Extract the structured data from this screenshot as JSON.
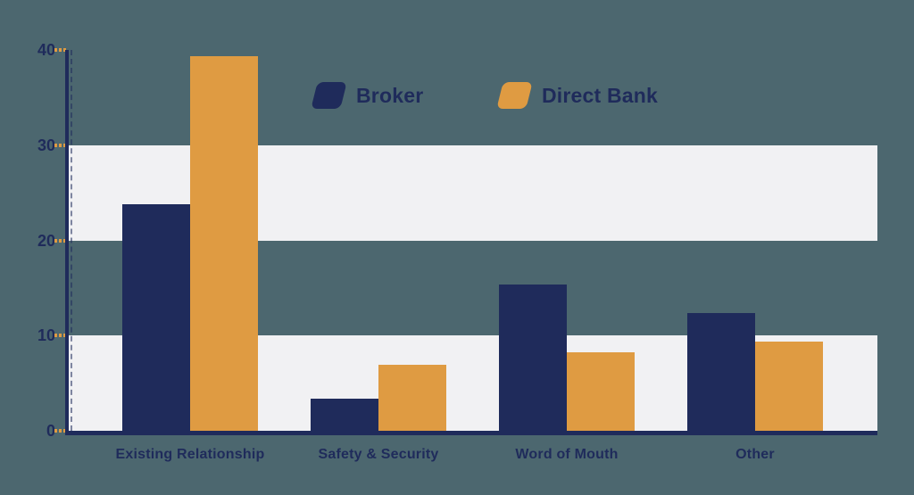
{
  "chart_data": {
    "type": "bar",
    "title": "",
    "xlabel": "",
    "ylabel": "",
    "categories": [
      "Existing Relationship",
      "Safety & Security",
      "Word of Mouth",
      "Other"
    ],
    "series": [
      {
        "name": "Broker",
        "color": "#1f2b5b",
        "values": [
          23.8,
          3.4,
          15.4,
          12.4
        ]
      },
      {
        "name": "Direct Bank",
        "color": "#df9b42",
        "values": [
          39.3,
          6.9,
          8.2,
          9.4
        ]
      }
    ],
    "yticks": [
      0,
      10,
      20,
      30,
      40
    ],
    "ylim": [
      0,
      40
    ],
    "grid": "horizontal-bands",
    "bands": [
      [
        0,
        10
      ],
      [
        20,
        30
      ]
    ],
    "legend_position": "top-center"
  },
  "colors": {
    "background": "#4c676f",
    "band": "#f1f1f3",
    "axis": "#1f2b5b",
    "tick_dash": "#df9b42",
    "label_text": "#1f2b5b"
  }
}
